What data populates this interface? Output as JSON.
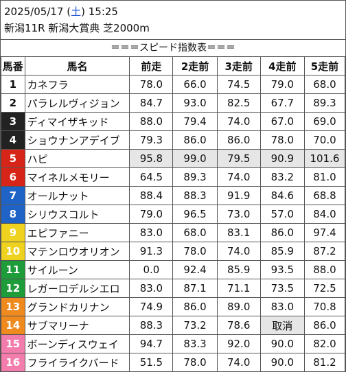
{
  "header": {
    "date": "2025/05/17",
    "dow_open": " (",
    "dow": "土",
    "dow_close": ")",
    "time": " 15:25",
    "race": "新潟11R 新潟大賞典 芝2000m"
  },
  "table_title": "＝＝＝スピード指数表＝＝＝",
  "columns": [
    "馬番",
    "馬名",
    "前走",
    "2走前",
    "3走前",
    "4走前",
    "5走前"
  ],
  "colors": {
    "frame1": "#ffffff",
    "frame2": "#000000",
    "frame3": "#d62418",
    "frame4": "#1f63c7",
    "frame5": "#eed21f",
    "frame6": "#1e9c3a",
    "frame7": "#ee8a1e",
    "frame8": "#f27dad",
    "highlight": "#e6e6e6"
  },
  "rows": [
    {
      "num": "1",
      "name": "カネフラ",
      "v": [
        "78.0",
        "66.0",
        "74.5",
        "79.0",
        "68.0"
      ],
      "bg": "#ffffff",
      "fg": "#111111"
    },
    {
      "num": "2",
      "name": "パラレルヴィジョン",
      "v": [
        "84.7",
        "93.0",
        "82.5",
        "67.7",
        "89.3"
      ],
      "bg": "#ffffff",
      "fg": "#111111"
    },
    {
      "num": "3",
      "name": "ディマイザキッド",
      "v": [
        "88.0",
        "79.4",
        "74.0",
        "67.0",
        "69.0"
      ],
      "bg": "#222222",
      "fg": "#ffffff"
    },
    {
      "num": "4",
      "name": "ショウナンアデイブ",
      "v": [
        "79.3",
        "86.0",
        "86.0",
        "78.0",
        "70.0"
      ],
      "bg": "#222222",
      "fg": "#ffffff"
    },
    {
      "num": "5",
      "name": "ハピ",
      "v": [
        "95.8",
        "99.0",
        "79.5",
        "90.9",
        "101.6"
      ],
      "bg": "#d62418",
      "fg": "#ffffff",
      "hl": true
    },
    {
      "num": "6",
      "name": "マイネルメモリー",
      "v": [
        "64.5",
        "89.3",
        "74.0",
        "83.2",
        "81.0"
      ],
      "bg": "#d62418",
      "fg": "#ffffff"
    },
    {
      "num": "7",
      "name": "オールナット",
      "v": [
        "88.4",
        "88.3",
        "91.9",
        "84.6",
        "68.8"
      ],
      "bg": "#1f63c7",
      "fg": "#ffffff"
    },
    {
      "num": "8",
      "name": "シリウスコルト",
      "v": [
        "79.0",
        "96.5",
        "73.0",
        "57.0",
        "84.0"
      ],
      "bg": "#1f63c7",
      "fg": "#ffffff"
    },
    {
      "num": "9",
      "name": "エピファニー",
      "v": [
        "83.0",
        "68.0",
        "83.1",
        "86.0",
        "97.4"
      ],
      "bg": "#eed21f",
      "fg": "#ffffff"
    },
    {
      "num": "10",
      "name": "マテンロウオリオン",
      "v": [
        "91.3",
        "78.0",
        "74.0",
        "85.9",
        "87.2"
      ],
      "bg": "#eed21f",
      "fg": "#ffffff"
    },
    {
      "num": "11",
      "name": "サイルーン",
      "v": [
        "0.0",
        "92.4",
        "85.9",
        "93.5",
        "88.0"
      ],
      "bg": "#1e9c3a",
      "fg": "#ffffff"
    },
    {
      "num": "12",
      "name": "レガーロデルシエロ",
      "v": [
        "83.0",
        "87.1",
        "71.1",
        "73.5",
        "72.5"
      ],
      "bg": "#1e9c3a",
      "fg": "#ffffff"
    },
    {
      "num": "13",
      "name": "グランドカリナン",
      "v": [
        "74.9",
        "86.0",
        "89.0",
        "83.0",
        "70.8"
      ],
      "bg": "#ee8a1e",
      "fg": "#ffffff"
    },
    {
      "num": "14",
      "name": "サブマリーナ",
      "v": [
        "88.3",
        "73.2",
        "78.6",
        "取消",
        "86.0"
      ],
      "bg": "#ee8a1e",
      "fg": "#ffffff",
      "cancel": 3
    },
    {
      "num": "15",
      "name": "ボーンディスウェイ",
      "v": [
        "94.7",
        "83.3",
        "92.0",
        "90.0",
        "82.0"
      ],
      "bg": "#f27dad",
      "fg": "#ffffff"
    },
    {
      "num": "16",
      "name": "フライライクバード",
      "v": [
        "51.5",
        "78.0",
        "74.0",
        "90.0",
        "81.2"
      ],
      "bg": "#f27dad",
      "fg": "#ffffff"
    }
  ]
}
